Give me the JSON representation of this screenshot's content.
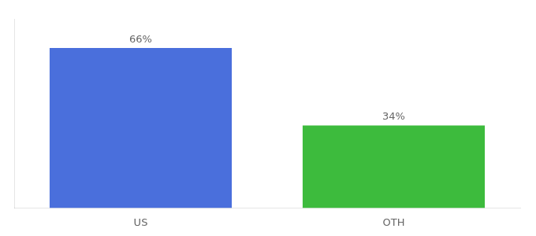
{
  "chart_data": {
    "type": "bar",
    "categories": [
      "US",
      "OTH"
    ],
    "values": [
      66,
      34
    ],
    "value_labels": [
      "66%",
      "34%"
    ],
    "colors": [
      "#4a6fdc",
      "#3dbb3d"
    ],
    "ylim": [
      0,
      78
    ],
    "data_labels": true,
    "grid": false,
    "tick_labels": "x"
  }
}
